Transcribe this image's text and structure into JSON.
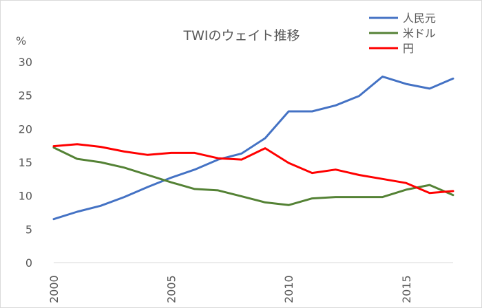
{
  "chart_data": {
    "type": "line",
    "title": "TWIのウェイト推移",
    "ylabel": "%",
    "xlabel": "",
    "xlim": [
      2000,
      2017
    ],
    "ylim": [
      0,
      30
    ],
    "y_ticks": [
      "0",
      "5",
      "10",
      "15",
      "20",
      "25",
      "30"
    ],
    "x_ticks": [
      "2000",
      "2005",
      "2010",
      "2015"
    ],
    "grid": false,
    "legend_position": "top-right",
    "x": [
      2000,
      2001,
      2002,
      2003,
      2004,
      2005,
      2006,
      2007,
      2008,
      2009,
      2010,
      2011,
      2012,
      2013,
      2014,
      2015,
      2016,
      2017
    ],
    "series": [
      {
        "name": "人民元",
        "color": "#4472C4",
        "values": [
          6.5,
          7.6,
          8.5,
          9.8,
          11.3,
          12.7,
          13.9,
          15.4,
          16.3,
          18.6,
          22.6,
          22.6,
          23.5,
          24.9,
          27.8,
          26.7,
          26.0,
          27.5
        ]
      },
      {
        "name": "米ドル",
        "color": "#548235",
        "values": [
          17.2,
          15.5,
          15.0,
          14.2,
          13.1,
          12.0,
          11.0,
          10.8,
          9.9,
          9.0,
          8.6,
          9.6,
          9.8,
          9.8,
          9.8,
          10.9,
          11.6,
          10.1
        ]
      },
      {
        "name": "円",
        "color": "#FF0000",
        "values": [
          17.4,
          17.7,
          17.3,
          16.6,
          16.1,
          16.4,
          16.4,
          15.6,
          15.4,
          17.1,
          14.9,
          13.4,
          13.9,
          13.1,
          12.5,
          11.9,
          10.4,
          10.7
        ]
      }
    ]
  }
}
